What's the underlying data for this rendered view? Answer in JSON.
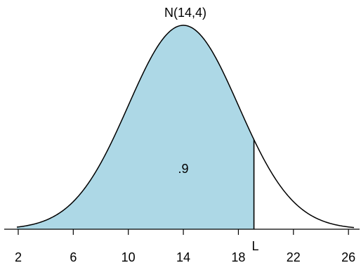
{
  "chart_data": {
    "type": "area",
    "title": "N(14,4)",
    "distribution": {
      "name": "normal",
      "mean": 14,
      "sd": 4
    },
    "xlim": [
      1.9,
      26.4
    ],
    "x_ticks": [
      2,
      6,
      10,
      14,
      18,
      22,
      26
    ],
    "x_tick_labels": [
      "2",
      "6",
      "10",
      "14",
      "18",
      "22",
      "26"
    ],
    "shaded_region": {
      "from": 1.9,
      "to": 19.13,
      "area_label": ".9",
      "fill": "#add8e6"
    },
    "cutoff_label": "L",
    "grid": false,
    "legend": "none",
    "colors": {
      "curve": "#000000",
      "shade": "#add8e6",
      "background": "#ffffff"
    }
  }
}
